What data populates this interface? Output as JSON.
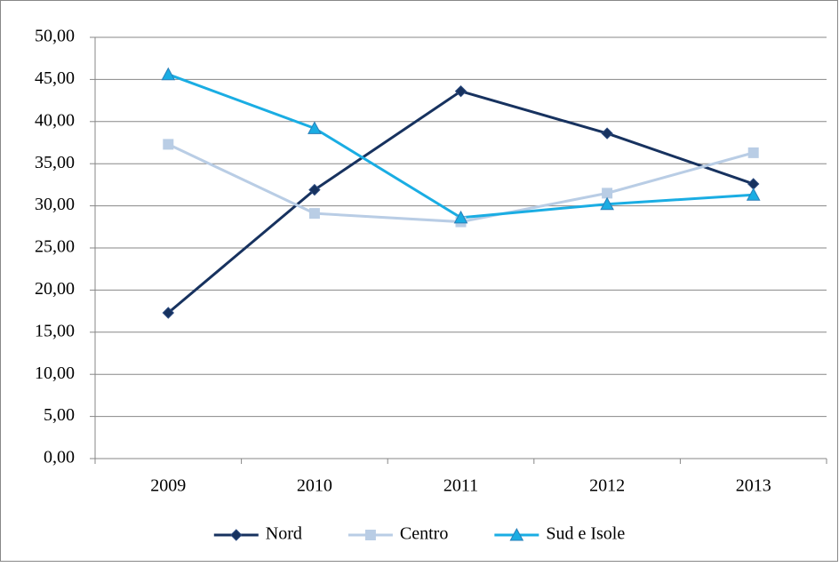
{
  "chart_data": {
    "type": "line",
    "categories": [
      "2009",
      "2010",
      "2011",
      "2012",
      "2013"
    ],
    "series": [
      {
        "name": "Nord",
        "color": "#17325f",
        "marker": "diamond",
        "values": [
          17.3,
          31.9,
          43.6,
          38.6,
          32.6
        ]
      },
      {
        "name": "Centro",
        "color": "#b9cde5",
        "marker": "square",
        "values": [
          37.3,
          29.1,
          28.1,
          31.5,
          36.3
        ]
      },
      {
        "name": "Sud e Isole",
        "color": "#1aade3",
        "marker": "triangle",
        "values": [
          45.6,
          39.2,
          28.6,
          30.2,
          31.3
        ]
      }
    ],
    "ylim": [
      0,
      50
    ],
    "yticks": [
      {
        "value": 0,
        "label": "0,00"
      },
      {
        "value": 5,
        "label": "5,00"
      },
      {
        "value": 10,
        "label": "10,00"
      },
      {
        "value": 15,
        "label": "15,00"
      },
      {
        "value": 20,
        "label": "20,00"
      },
      {
        "value": 25,
        "label": "25,00"
      },
      {
        "value": 30,
        "label": "30,00"
      },
      {
        "value": 35,
        "label": "35,00"
      },
      {
        "value": 40,
        "label": "40,00"
      },
      {
        "value": 45,
        "label": "45,00"
      },
      {
        "value": 50,
        "label": "50,00"
      }
    ],
    "grid": true,
    "legend": "bottom"
  }
}
